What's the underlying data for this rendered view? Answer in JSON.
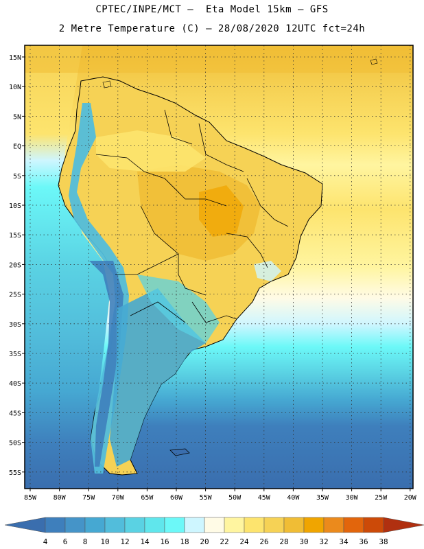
{
  "title_line1": "CPTEC/INPE/MCT –  Eta Model 15km – GFS",
  "title_line2": "2 Metre Temperature (C) – 28/08/2020 12UTC fct=24h",
  "lat_labels": [
    "15N",
    "10N",
    "5N",
    "EQ",
    "5S",
    "10S",
    "15S",
    "20S",
    "25S",
    "30S",
    "35S",
    "40S",
    "45S",
    "50S",
    "55S"
  ],
  "lon_labels": [
    "85W",
    "80W",
    "75W",
    "70W",
    "65W",
    "60W",
    "55W",
    "50W",
    "45W",
    "40W",
    "35W",
    "30W",
    "25W",
    "20W"
  ],
  "colorbar": {
    "labels": [
      "4",
      "6",
      "8",
      "10",
      "12",
      "14",
      "16",
      "18",
      "20",
      "22",
      "24",
      "26",
      "28",
      "30",
      "32",
      "34",
      "36",
      "38"
    ],
    "colors": [
      "#3a6eae",
      "#3e7fbc",
      "#4594c8",
      "#46a8d2",
      "#52bddb",
      "#5ad2e3",
      "#60e6ec",
      "#6cf8f8",
      "#cef6ff",
      "#fffbe6",
      "#fff5a0",
      "#fde46e",
      "#f6d255",
      "#f0bd35",
      "#f0a500",
      "#eb8a1c",
      "#e2650c",
      "#cc4a08",
      "#b03010"
    ]
  }
}
